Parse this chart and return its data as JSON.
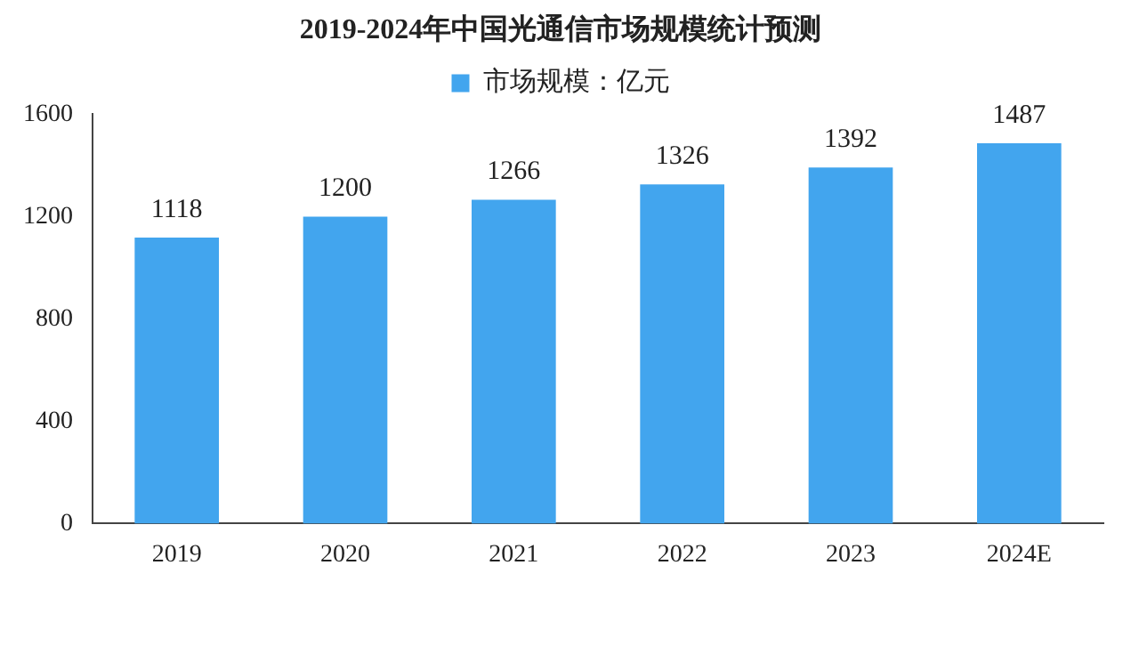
{
  "chart_data": {
    "type": "bar",
    "title": "2019-2024年中国光通信市场规模统计预测",
    "categories": [
      "2019",
      "2020",
      "2021",
      "2022",
      "2023",
      "2024E"
    ],
    "series": [
      {
        "name": "市场规模：亿元",
        "color": "#42a5ee",
        "values": [
          1118,
          1200,
          1266,
          1326,
          1392,
          1487
        ]
      }
    ],
    "ylim": [
      0,
      1600
    ],
    "yticks": [
      0,
      400,
      800,
      1200,
      1600
    ],
    "grid": false,
    "legend": "top",
    "data_labels": true
  }
}
